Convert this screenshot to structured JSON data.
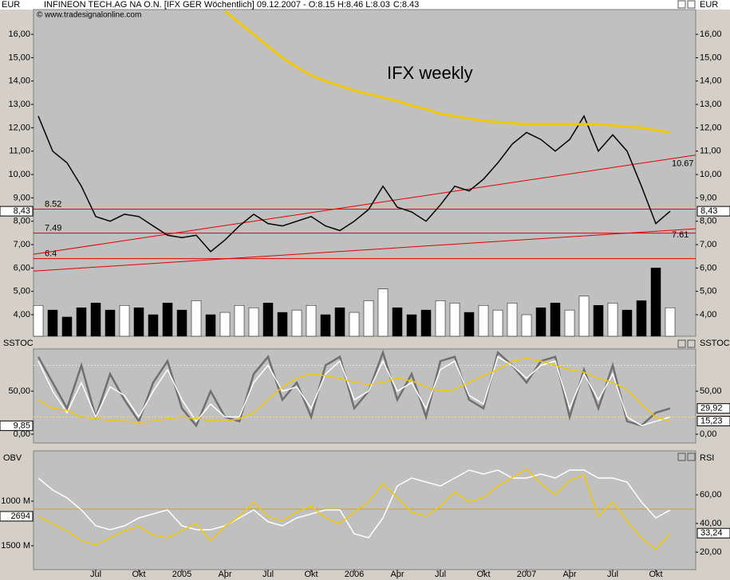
{
  "header": {
    "unit": "EUR",
    "title": "INFINEON TECH.AG NA O.N. [IFX GER  Wöchentlich] 09.12.2007 - O:8.15 H:8.46 L:8.03",
    "close": "C:8.43",
    "copyright": "© www.tradesignalonline.com"
  },
  "chart_data": [
    {
      "type": "line",
      "ylabel": "EUR",
      "annotation": "IFX weekly",
      "ylim": [
        3.08,
        17.06
      ],
      "yticks": [
        {
          "value": 4,
          "label": "4,00"
        },
        {
          "value": 5,
          "label": "5,00"
        },
        {
          "value": 6,
          "label": "6,00"
        },
        {
          "value": 7,
          "label": "7,00"
        },
        {
          "value": 8,
          "label": "8,00"
        },
        {
          "value": 9,
          "label": "9,00"
        },
        {
          "value": 10,
          "label": "10,00"
        },
        {
          "value": 11,
          "label": "11,00"
        },
        {
          "value": 12,
          "label": "12,00"
        },
        {
          "value": 13,
          "label": "13,00"
        },
        {
          "value": 14,
          "label": "14,00"
        },
        {
          "value": 15,
          "label": "15,00"
        },
        {
          "value": 16,
          "label": "16,00"
        }
      ],
      "series": [
        {
          "color": "#000000",
          "values": [
            12.5,
            11.0,
            10.5,
            9.5,
            8.2,
            8.0,
            8.3,
            8.2,
            7.8,
            7.4,
            7.3,
            7.4,
            6.7,
            7.2,
            7.8,
            8.3,
            7.9,
            7.8,
            8.0,
            8.2,
            7.8,
            7.6,
            8.0,
            8.5,
            9.5,
            8.6,
            8.4,
            8.0,
            8.7,
            9.5,
            9.3,
            9.8,
            10.5,
            11.3,
            11.8,
            11.5,
            11.0,
            11.5,
            12.5,
            11.0,
            11.7,
            11.0,
            9.5,
            7.9,
            8.43
          ]
        },
        {
          "color": "#f0c800",
          "values": [
            null,
            null,
            null,
            null,
            null,
            null,
            null,
            null,
            null,
            null,
            null,
            null,
            null,
            17.0,
            16.5,
            16.0,
            15.5,
            15.0,
            14.6,
            14.25,
            14.0,
            13.8,
            13.6,
            13.45,
            13.3,
            13.15,
            12.95,
            12.8,
            12.6,
            12.5,
            12.4,
            12.3,
            12.25,
            12.2,
            12.15,
            12.15,
            12.15,
            12.15,
            12.15,
            12.15,
            12.1,
            12.05,
            12.0,
            11.9,
            11.8
          ]
        }
      ],
      "volume": {
        "values": [
          4.4,
          4.2,
          3.9,
          4.3,
          4.5,
          4.2,
          4.4,
          4.3,
          4.0,
          4.5,
          4.2,
          4.6,
          4.0,
          4.1,
          4.4,
          4.3,
          4.5,
          4.1,
          4.2,
          4.4,
          4.0,
          4.3,
          4.1,
          4.6,
          5.1,
          4.3,
          4.0,
          4.2,
          4.6,
          4.5,
          4.1,
          4.4,
          4.2,
          4.5,
          4.0,
          4.3,
          4.5,
          4.2,
          4.8,
          4.4,
          4.5,
          4.2,
          4.6,
          6.0,
          4.3
        ]
      },
      "levels": [
        8.52,
        7.49,
        6.4
      ],
      "trendlines": [
        {
          "values": [
            6.62,
            10.67
          ]
        },
        {
          "values": [
            5.88,
            7.61
          ]
        }
      ],
      "last_labels": [
        {
          "value": 8.43,
          "label": "8,43"
        }
      ]
    },
    {
      "type": "line",
      "ylabel": "SSTOC",
      "ylim": [
        -10.2,
        99.1
      ],
      "yticks": [
        {
          "value": 0,
          "label": "0,00"
        },
        {
          "value": 50,
          "label": "50,00"
        }
      ],
      "levels": [
        80,
        20
      ],
      "series": [
        {
          "color": "#707070",
          "values": [
            90,
            60,
            30,
            80,
            20,
            70,
            40,
            15,
            60,
            85,
            30,
            10,
            50,
            20,
            15,
            70,
            90,
            40,
            60,
            20,
            80,
            90,
            30,
            50,
            95,
            40,
            70,
            20,
            85,
            90,
            40,
            30,
            95,
            80,
            60,
            85,
            90,
            20,
            75,
            30,
            80,
            15,
            10,
            25,
            30
          ]
        },
        {
          "color": "#ffffff",
          "values": [
            85,
            50,
            25,
            60,
            20,
            55,
            45,
            20,
            50,
            75,
            40,
            15,
            35,
            20,
            20,
            60,
            80,
            50,
            55,
            30,
            70,
            85,
            40,
            50,
            85,
            50,
            60,
            30,
            75,
            85,
            45,
            35,
            90,
            80,
            65,
            80,
            85,
            30,
            70,
            40,
            70,
            20,
            10,
            15,
            20
          ]
        },
        {
          "color": "#f0c800",
          "values": [
            40,
            30,
            28,
            20,
            18,
            16,
            15,
            14,
            15,
            18,
            20,
            18,
            16,
            15,
            18,
            25,
            40,
            55,
            65,
            70,
            68,
            65,
            60,
            58,
            60,
            65,
            62,
            55,
            50,
            52,
            60,
            68,
            75,
            85,
            88,
            85,
            80,
            75,
            72,
            65,
            60,
            52,
            35,
            20,
            15
          ]
        }
      ],
      "last_labels": [
        {
          "value": 29.92,
          "label": "29,92"
        },
        {
          "value": 15.23,
          "label": "15,23"
        }
      ],
      "last_labels_left": [
        {
          "value": 9.85,
          "label": "9,85"
        }
      ]
    },
    {
      "type": "line",
      "ylabel": "OBV",
      "y2label": "RSI",
      "left_box": "2694",
      "categories": [
        null,
        null,
        null,
        null,
        "Jul",
        null,
        null,
        "Okt",
        null,
        null,
        "2005",
        null,
        null,
        "Apr",
        null,
        null,
        "Jul",
        null,
        null,
        "Okt",
        null,
        null,
        "2006",
        null,
        null,
        "Apr",
        null,
        null,
        "Jul",
        null,
        null,
        "Okt",
        null,
        null,
        "2007",
        null,
        null,
        "Apr",
        null,
        null,
        "Jul",
        null,
        null,
        "Okt",
        null
      ],
      "ylim": [
        1767.9,
        437.5
      ],
      "yticks": [
        {
          "value": 1000,
          "label": "1000 M"
        },
        {
          "value": 1500,
          "label": "1500 M"
        }
      ],
      "y2lim": [
        7.8,
        90.6
      ],
      "y2ticks": [
        {
          "value": 20,
          "label": "20,00"
        },
        {
          "value": 40,
          "label": "40,00"
        },
        {
          "value": 60,
          "label": "60,00"
        }
      ],
      "levels": [
        50
      ],
      "series": [
        {
          "color": "#ffffff",
          "values": [
            741,
            875,
            964,
            1098,
            1277,
            1321,
            1277,
            1188,
            1143,
            1098,
            1277,
            1321,
            1321,
            1277,
            1188,
            1098,
            1232,
            1277,
            1188,
            1143,
            1098,
            1098,
            1366,
            1411,
            1188,
            830,
            741,
            786,
            830,
            741,
            652,
            696,
            652,
            741,
            741,
            696,
            741,
            652,
            652,
            741,
            741,
            786,
            1009,
            1188,
            1100
          ]
        },
        {
          "color": "#f0c800",
          "axis": "y2",
          "values": [
            45,
            40,
            35,
            28,
            25,
            30,
            35,
            38,
            32,
            30,
            35,
            40,
            28,
            38,
            45,
            55,
            45,
            42,
            48,
            52,
            44,
            40,
            48,
            55,
            68,
            58,
            48,
            45,
            52,
            62,
            55,
            58,
            66,
            72,
            78,
            68,
            60,
            70,
            74,
            45,
            55,
            42,
            30,
            22,
            33
          ]
        }
      ],
      "last_labels": [
        {
          "value": 33.24,
          "label": "33,24"
        }
      ]
    }
  ]
}
